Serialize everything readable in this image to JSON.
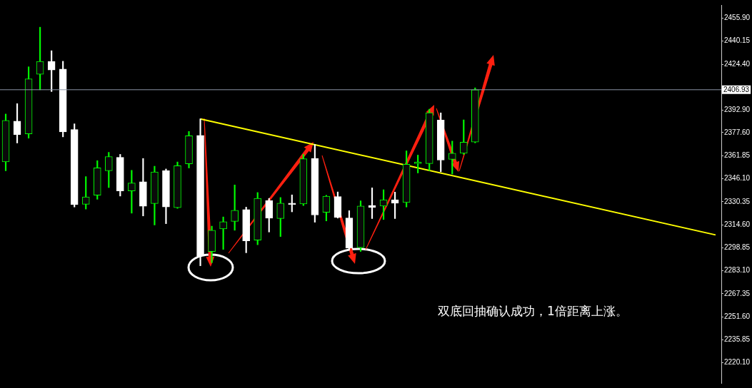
{
  "chart_data": {
    "type": "candlestick",
    "colors": [
      "#00ff00",
      "#ffffff",
      "#00ff00",
      "#00ff00",
      "#ffffff",
      "#ffffff",
      "#ffffff",
      "#00ff00",
      "#00ff00",
      "#00ff00",
      "#ffffff",
      "#00ff00",
      "#ffffff",
      "#00ff00",
      "#ffffff",
      "#00ff00",
      "#00ff00",
      "#ffffff",
      "#00ff00",
      "#00ff00",
      "#00ff00",
      "#ffffff",
      "#00ff00",
      "#ffffff",
      "#00ff00",
      "#ffffff",
      "#00ff00",
      "#ffffff",
      "#00ff00",
      "#ffffff",
      "#ffffff",
      "#00ff00",
      "#ffffff",
      "#00ff00",
      "#ffffff",
      "#00ff00",
      "#00ff00",
      "#00ff00",
      "#ffffff",
      "#00ff00",
      "#00ff00",
      "#00ff00",
      null,
      null,
      null,
      null,
      null,
      null,
      null,
      null,
      null,
      null,
      null,
      null,
      null,
      null,
      null,
      null,
      null,
      null,
      null,
      null,
      null
    ],
    "categories": [
      null,
      null,
      null,
      null,
      null,
      null,
      null,
      null,
      null,
      null,
      null,
      null,
      null,
      null,
      null,
      null,
      null,
      null,
      null,
      null,
      null,
      null,
      null,
      null,
      null,
      null,
      null,
      null,
      null,
      null,
      null,
      null,
      null,
      null,
      null,
      null,
      null,
      null,
      null,
      null,
      null,
      null,
      null,
      null,
      null,
      null,
      null,
      null,
      null,
      null,
      null,
      null,
      null,
      null,
      null,
      null,
      null,
      null,
      null,
      null,
      null,
      null,
      null
    ],
    "ohlc": [
      [
        2357.6,
        2390.3,
        2351.5,
        2386.0
      ],
      [
        2385.4,
        2397.4,
        2370.5,
        2376.2
      ],
      [
        2376.7,
        2422.6,
        2373.8,
        2414.4
      ],
      [
        2417.5,
        2449.7,
        2406.9,
        2426.3
      ],
      [
        2426.3,
        2433.6,
        2405.7,
        2420.4
      ],
      [
        2421.1,
        2426.4,
        2374.7,
        2378.1
      ],
      [
        2379.7,
        2383.6,
        2326.7,
        2328.3
      ],
      [
        2328.6,
        2347.5,
        2325.3,
        2333.6
      ],
      [
        2334.8,
        2358.4,
        2332.0,
        2353.5
      ],
      [
        2351.5,
        2364.1,
        2340.0,
        2361.2
      ],
      [
        2360.7,
        2362.7,
        2334.2,
        2337.7
      ],
      [
        2337.7,
        2351.8,
        2322.5,
        2343.1
      ],
      [
        2344.0,
        2359.9,
        2320.6,
        2327.2
      ],
      [
        2329.1,
        2354.6,
        2314.4,
        2350.7
      ],
      [
        2351.6,
        2352.7,
        2315.3,
        2326.7
      ],
      [
        2326.3,
        2357.5,
        2325.8,
        2355.0
      ],
      [
        2356.2,
        2378.4,
        2353.4,
        2375.4
      ],
      [
        2375.7,
        2387.0,
        2286.5,
        2293.3
      ],
      [
        2296.2,
        2313.6,
        2288.6,
        2310.8
      ],
      [
        2311.7,
        2319.9,
        2297.7,
        2316.7
      ],
      [
        2316.9,
        2341.8,
        2310.8,
        2324.5
      ],
      [
        2325.0,
        2326.6,
        2295.4,
        2303.6
      ],
      [
        2304.1,
        2336.6,
        2300.9,
        2332.6
      ],
      [
        2331.0,
        2332.6,
        2309.6,
        2319.0
      ],
      [
        2318.8,
        2333.2,
        2306.5,
        2329.3
      ],
      [
        2329.3,
        2335.0,
        2323.4,
        2328.3
      ],
      [
        2328.8,
        2362.7,
        2327.7,
        2359.7
      ],
      [
        2360.0,
        2369.5,
        2316.3,
        2321.2
      ],
      [
        2323.1,
        2334.7,
        2317.2,
        2334.1
      ],
      [
        2333.9,
        2337.0,
        2319.1,
        2319.5
      ],
      [
        2319.2,
        2324.2,
        2297.1,
        2298.5
      ],
      [
        2298.9,
        2330.9,
        2296.3,
        2327.4
      ],
      [
        2327.7,
        2339.8,
        2318.8,
        2326.4
      ],
      [
        2327.4,
        2338.5,
        2318.2,
        2331.7
      ],
      [
        2331.7,
        2336.9,
        2318.8,
        2329.3
      ],
      [
        2329.8,
        2365.1,
        2326.7,
        2355.9
      ],
      [
        2356.4,
        2362.2,
        2350.0,
        2356.4
      ],
      [
        2356.4,
        2393.6,
        2351.6,
        2391.2
      ],
      [
        2386.2,
        2391.1,
        2350.8,
        2358.8
      ],
      [
        2359.3,
        2371.8,
        2349.3,
        2363.5
      ],
      [
        2363.5,
        2386.3,
        2362.7,
        2371.1
      ],
      [
        2371.1,
        2408.2,
        2370.6,
        2406.93
      ],
      null,
      null,
      null,
      null,
      null,
      null,
      null,
      null,
      null,
      null,
      null,
      null,
      null,
      null,
      null,
      null,
      null,
      null,
      null,
      null,
      null
    ],
    "series": [
      {
        "type": "line",
        "color": "#ffff00",
        "values": [
          null,
          null,
          null,
          null,
          null,
          null,
          null,
          null,
          null,
          null,
          null,
          null,
          null,
          null,
          null,
          null,
          null,
          2387.0,
          null,
          null,
          null,
          null,
          null,
          null,
          null,
          null,
          null,
          null,
          null,
          null,
          null,
          null,
          null,
          null,
          null,
          null,
          null,
          null,
          null,
          null,
          null,
          null,
          null,
          null,
          null,
          null,
          null,
          null,
          null,
          null,
          null,
          null,
          null,
          null,
          null,
          null,
          null,
          null,
          null,
          null,
          null,
          null,
          2307.6
        ]
      }
    ],
    "ref_lines": [
      {
        "axis": "y",
        "value": 2406.93,
        "label": "2406.93",
        "color": "#8a94a6"
      }
    ],
    "annotations": [
      "双底回抽确认成功，1倍距离上涨。"
    ],
    "ylim": [
      2206.3,
      2464.9
    ],
    "yticks": [
      {
        "value": 2455.9,
        "label": "2455.90"
      },
      {
        "value": 2440.15,
        "label": "2440.15"
      },
      {
        "value": 2424.4,
        "label": "2424.40"
      },
      {
        "value": 2392.9,
        "label": "2392.90"
      },
      {
        "value": 2377.6,
        "label": "2377.60"
      },
      {
        "value": 2361.85,
        "label": "2361.85"
      },
      {
        "value": 2346.1,
        "label": "2346.10"
      },
      {
        "value": 2330.35,
        "label": "2330.35"
      },
      {
        "value": 2314.6,
        "label": "2314.60"
      },
      {
        "value": 2298.85,
        "label": "2298.85"
      },
      {
        "value": 2283.1,
        "label": "2283.10"
      },
      {
        "value": 2267.35,
        "label": "2267.35"
      },
      {
        "value": 2251.6,
        "label": "2251.60"
      },
      {
        "value": 2235.85,
        "label": "2235.85"
      },
      {
        "value": 2220.1,
        "label": "2220.10"
      }
    ],
    "tick_labels": "y"
  }
}
